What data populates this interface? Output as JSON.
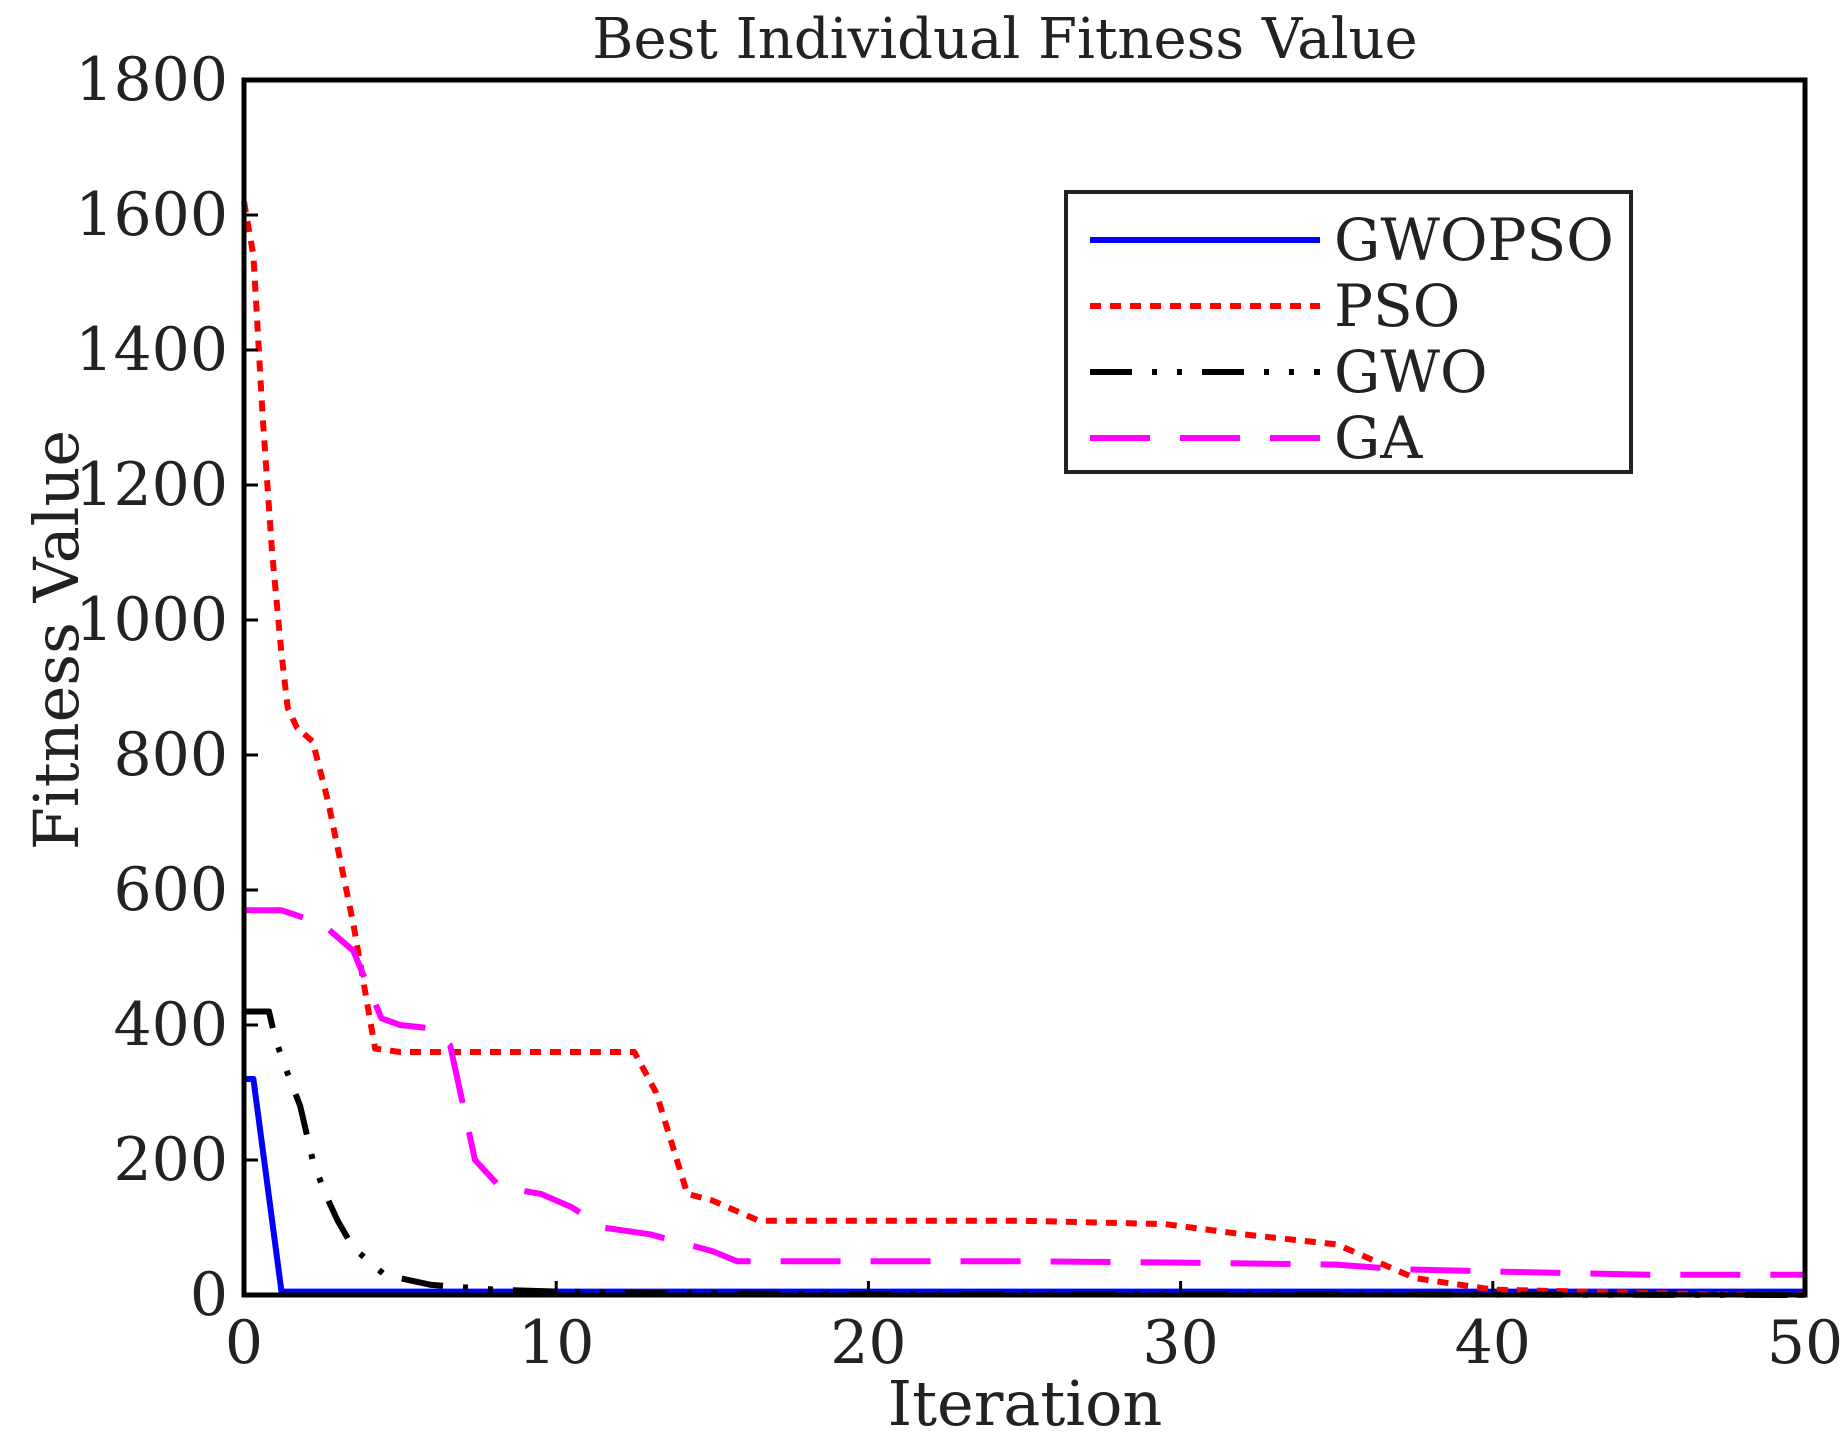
{
  "chart_data": {
    "type": "line",
    "title": "Best Individual Fitness Value",
    "xlabel": "Iteration",
    "ylabel": "Fitness Value",
    "xlim": [
      0,
      50
    ],
    "ylim": [
      0,
      1800
    ],
    "xticks": [
      0,
      10,
      20,
      30,
      40,
      50
    ],
    "yticks": [
      0,
      200,
      400,
      600,
      800,
      1000,
      1200,
      1400,
      1600,
      1800
    ],
    "xtick_labels": [
      "0",
      "10",
      "20",
      "30",
      "40",
      "50"
    ],
    "ytick_labels": [
      "0",
      "200",
      "400",
      "600",
      "800",
      "1000",
      "1200",
      "1400",
      "1600",
      "1800"
    ],
    "grid": false,
    "legend_position": "top-right",
    "series": [
      {
        "name": "GWOPSO",
        "color": "#0000ff",
        "style": "solid",
        "x": [
          0,
          0.3,
          1.2,
          50
        ],
        "y": [
          320,
          320,
          5,
          5
        ]
      },
      {
        "name": "PSO",
        "color": "#ff0000",
        "style": "dotted",
        "x": [
          0,
          0.3,
          0.6,
          0.9,
          1.2,
          1.4,
          1.7,
          2.2,
          2.7,
          3.5,
          4.2,
          5,
          8,
          10,
          12.5,
          13.2,
          14.2,
          15,
          16.5,
          20,
          25,
          29.5,
          32,
          35,
          37.5,
          40,
          42,
          45,
          47,
          50
        ],
        "y": [
          1620,
          1540,
          1300,
          1100,
          950,
          870,
          840,
          820,
          730,
          550,
          365,
          360,
          360,
          360,
          360,
          300,
          150,
          140,
          110,
          110,
          110,
          105,
          90,
          75,
          25,
          8,
          6,
          3,
          1,
          0
        ]
      },
      {
        "name": "GWO",
        "color": "#000000",
        "style": "dashdot",
        "x": [
          0,
          0.8,
          1.0,
          1.3,
          1.8,
          2.2,
          2.6,
          3.0,
          3.5,
          4.5,
          6,
          8,
          10,
          13,
          17,
          25,
          30,
          50
        ],
        "y": [
          420,
          420,
          380,
          340,
          280,
          200,
          150,
          110,
          70,
          30,
          15,
          8,
          5,
          3,
          2,
          1,
          1,
          0
        ]
      },
      {
        "name": "GA",
        "color": "#ff00ff",
        "style": "dashed",
        "x": [
          0,
          1.2,
          2.5,
          3.5,
          4.4,
          5.0,
          6.0,
          6.6,
          7.4,
          8.2,
          9.5,
          10.5,
          11.5,
          13,
          15,
          15.8,
          17,
          20,
          25,
          30,
          35,
          37,
          40,
          45,
          50
        ],
        "y": [
          570,
          570,
          550,
          510,
          410,
          400,
          395,
          370,
          200,
          160,
          150,
          130,
          100,
          90,
          65,
          50,
          50,
          50,
          50,
          48,
          45,
          38,
          35,
          30,
          30
        ]
      }
    ]
  }
}
